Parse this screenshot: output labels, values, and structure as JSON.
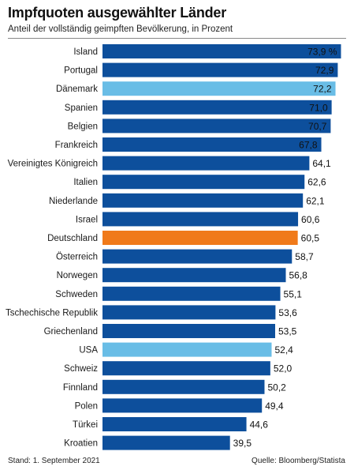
{
  "title": "Impfquoten ausgewählter Länder",
  "subtitle": "Anteil der vollständig geimpften Bevölkerung, in Prozent",
  "footer": {
    "stand": "Stand: 1. September 2021",
    "quelle": "Quelle: Bloomberg/Statista"
  },
  "colors": {
    "default": "#0d4f9c",
    "highlight_light": "#69bde6",
    "highlight_orange": "#f07a1a",
    "value_on_bar": "#ffffff",
    "value_off_bar": "#111111"
  },
  "chart_data": {
    "type": "bar",
    "orientation": "horizontal",
    "categories": [
      "Island",
      "Portugal",
      "Dänemark",
      "Spanien",
      "Belgien",
      "Frankreich",
      "Vereinigtes Königreich",
      "Italien",
      "Niederlande",
      "Israel",
      "Deutschland",
      "Österreich",
      "Norwegen",
      "Schweden",
      "Tschechische Republik",
      "Griechenland",
      "USA",
      "Schweiz",
      "Finnland",
      "Polen",
      "Türkei",
      "Kroatien"
    ],
    "values": [
      73.9,
      72.9,
      72.2,
      71.0,
      70.7,
      67.8,
      64.1,
      62.6,
      62.1,
      60.6,
      60.5,
      58.7,
      56.8,
      55.1,
      53.6,
      53.5,
      52.4,
      52.0,
      50.2,
      49.4,
      44.6,
      39.5
    ],
    "value_labels": [
      "73,9 %",
      "72,9",
      "72,2",
      "71,0",
      "70,7",
      "67,8",
      "64,1",
      "62,6",
      "62,1",
      "60,6",
      "60,5",
      "58,7",
      "56,8",
      "55,1",
      "53,6",
      "53,5",
      "52,4",
      "52,0",
      "50,2",
      "49,4",
      "44,6",
      "39,5"
    ],
    "highlight": {
      "Dänemark": "light",
      "USA": "light",
      "Deutschland": "orange"
    },
    "xlim": [
      0,
      75
    ],
    "grid": false,
    "legend": "none"
  }
}
